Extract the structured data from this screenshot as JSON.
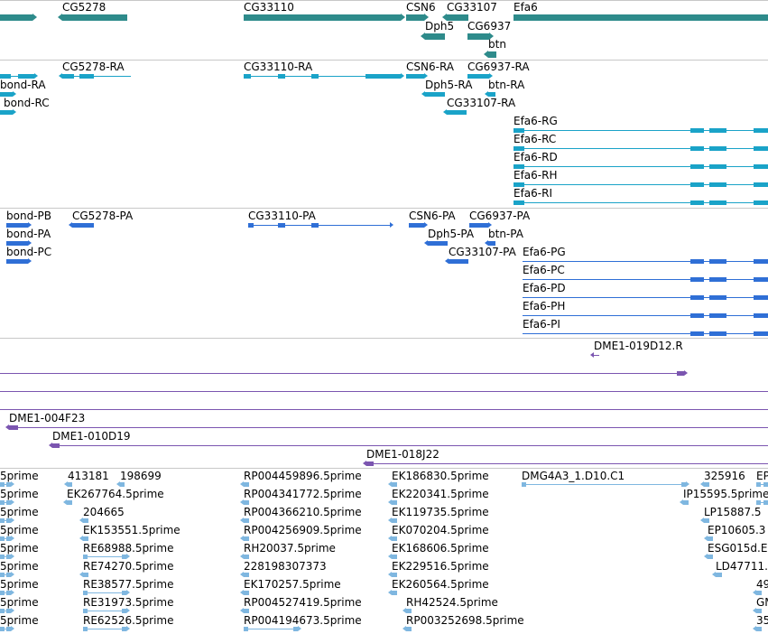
{
  "colors": {
    "gene": "#2e8b8b",
    "mrna": "#1aa3c8",
    "protein": "#2f6fd6",
    "clone": "#7b55b0",
    "est": "#7fb7e0",
    "separator": "#c8c8c8"
  },
  "tracks": [
    {
      "name": "genes",
      "labels": [
        "CG5278",
        "CG33110",
        "CSN6",
        "CG33107",
        "Efa6",
        "Dph5",
        "CG6937",
        "btn"
      ]
    },
    {
      "name": "mrnas",
      "labels": [
        "CG5278-RA",
        "CG33110-RA",
        "CSN6-RA",
        "CG6937-RA",
        "bond-RA",
        "Dph5-RA",
        "btn-RA",
        "bond-RC",
        "CG33107-RA",
        "Efa6-RG",
        "Efa6-RC",
        "Efa6-RD",
        "Efa6-RH",
        "Efa6-RI"
      ]
    },
    {
      "name": "proteins",
      "labels": [
        "bond-PB",
        "CG5278-PA",
        "CG33110-PA",
        "CSN6-PA",
        "CG6937-PA",
        "bond-PA",
        "Dph5-PA",
        "btn-PA",
        "bond-PC",
        "CG33107-PA",
        "Efa6-PG",
        "Efa6-PC",
        "Efa6-PD",
        "Efa6-PH",
        "Efa6-PI"
      ]
    },
    {
      "name": "clones",
      "labels": [
        "DME1-019D12.R",
        "DME1-004F23",
        "DME1-010D19",
        "DME1-018J22"
      ]
    },
    {
      "name": "ests",
      "labels": [
        "5prime",
        "413181",
        "198699",
        "RP004459896.5prime",
        "EK186830.5prime",
        "DMG4A3_1.D10.C1",
        "325916",
        "EP",
        "5prime",
        "EK267764.5prime",
        "RP004341772.5prime",
        "EK220341.5prime",
        "IP15595.5prime",
        "5prime",
        "204665",
        "RP004366210.5prime",
        "EK119735.5prime",
        "LP15887.5",
        "5prime",
        "EK153551.5prime",
        "RP004256909.5prime",
        "EK070204.5prime",
        "EP10605.3",
        "5prime",
        "RE68988.5prime",
        "RH20037.5prime",
        "EK168606.5prime",
        "ESG015d.E",
        "5prime",
        "RE74270.5prime",
        "228198307373",
        "EK229516.5prime",
        "LD47711.",
        "5prime",
        "RE38577.5prime",
        "EK170257.5prime",
        "EK260564.5prime",
        "49",
        "5prime",
        "RE31973.5prime",
        "RP004527419.5prime",
        "RH42524.5prime",
        "GM",
        "5prime",
        "RE62526.5prime",
        "RP004194673.5prime",
        "RP003252698.5prime",
        "35"
      ]
    }
  ]
}
